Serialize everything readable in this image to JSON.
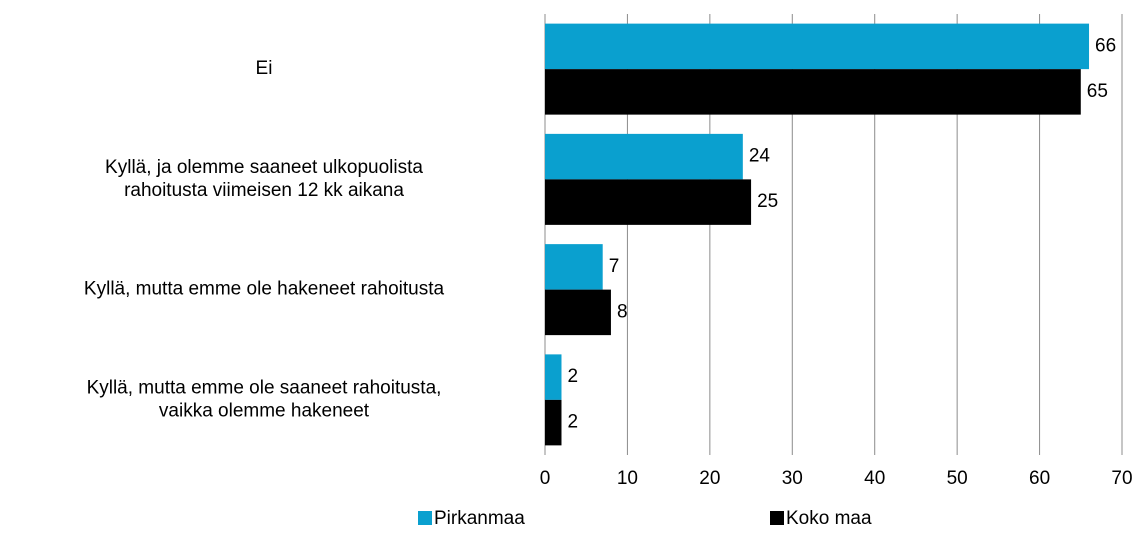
{
  "chart_data": {
    "type": "hbar",
    "categories": [
      [
        "Ei"
      ],
      [
        "Kyllä, ja olemme saaneet ulkopuolista",
        "rahoitusta viimeisen 12 kk aikana"
      ],
      [
        "Kyllä, mutta emme ole hakeneet rahoitusta"
      ],
      [
        "Kyllä, mutta emme ole saaneet rahoitusta,",
        "vaikka olemme hakeneet"
      ]
    ],
    "series": [
      {
        "name": "Pirkanmaa",
        "color": "#0aa0cf",
        "values": [
          66,
          24,
          7,
          2
        ]
      },
      {
        "name": "Koko maa",
        "color": "#000000",
        "values": [
          65,
          25,
          8,
          2
        ]
      }
    ],
    "xlim": [
      0,
      70
    ],
    "xticks": [
      0,
      10,
      20,
      30,
      40,
      50,
      60,
      70
    ],
    "grid": true,
    "legend": "bottom"
  }
}
